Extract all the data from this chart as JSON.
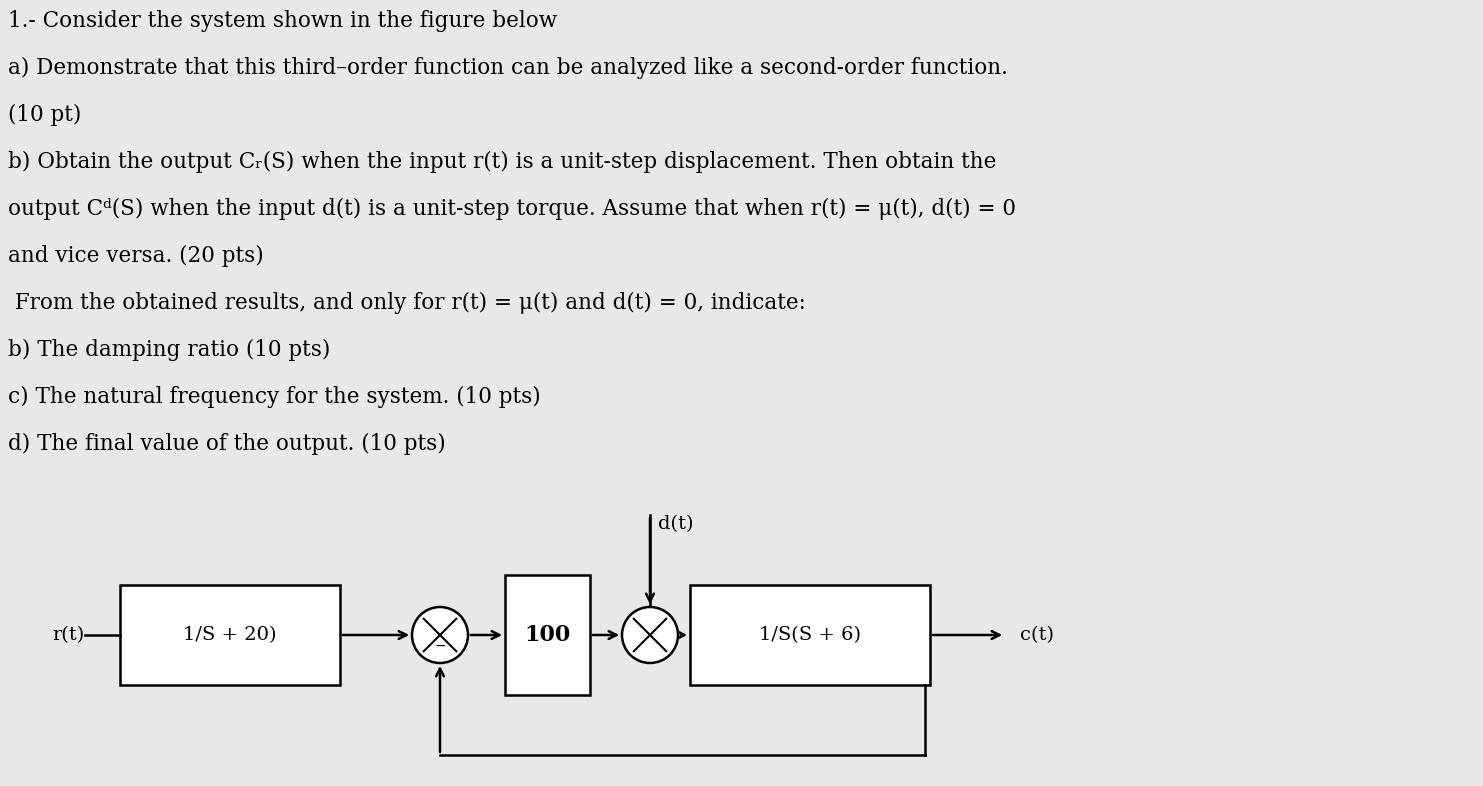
{
  "bg_color": "#e8e8e8",
  "text_color": "#000000",
  "title_lines": [
    [
      "1.- Consider the system shown in the figure below",
      "normal"
    ],
    [
      "a) Demonstrate that this third–order function can be analyzed like a second-order function.",
      "normal"
    ],
    [
      "(10 pt)",
      "normal"
    ],
    [
      "b) Obtain the output Cᵣ(S) when the input r(t) is a unit-step displacement. Then obtain the",
      "normal"
    ],
    [
      "output Cᵈ(S) when the input d(t) is a unit-step torque. Assume that when r(t) = μ(t), d(t) = 0",
      "normal"
    ],
    [
      "and vice versa. (20 pts)",
      "normal"
    ],
    [
      " From the obtained results, and only for r(t) = μ(t) and d(t) = 0, indicate:",
      "normal"
    ],
    [
      "b) The damping ratio (10 pts)",
      "normal"
    ],
    [
      "c) The natural frequency for the system. (10 pts)",
      "normal"
    ],
    [
      "d) The final value of the output. (10 pts)",
      "normal"
    ]
  ],
  "block1_label": "1/S + 20)",
  "block2_label": "100",
  "block3_label": "1/S(S + 6)",
  "input_label": "r(t)",
  "output_label": "c(t)",
  "disturbance_label": "d(t)",
  "font_size_text": 15.5,
  "font_size_block": 14,
  "font_size_labels": 14
}
